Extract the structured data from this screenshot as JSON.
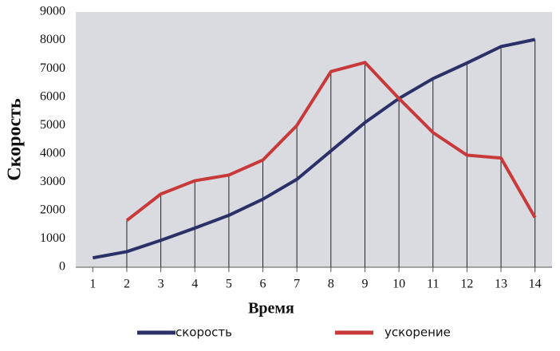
{
  "chart_data": {
    "type": "line",
    "x_label": "Время",
    "y_label": "Скорость",
    "categories": [
      "1",
      "2",
      "3",
      "4",
      "5",
      "6",
      "7",
      "8",
      "9",
      "10",
      "11",
      "12",
      "13",
      "14"
    ],
    "series": [
      {
        "name": "скорость",
        "color": "#2b3168",
        "values": [
          330,
          550,
          950,
          1380,
          1830,
          2400,
          3100,
          4100,
          5100,
          5950,
          6650,
          7200,
          7780,
          8030
        ]
      },
      {
        "name": "ускорение",
        "color": "#c83a3a",
        "values": [
          null,
          1650,
          2580,
          3050,
          3250,
          3780,
          5000,
          6900,
          7220,
          5950,
          4750,
          3950,
          3850,
          1750
        ]
      }
    ],
    "ylim": [
      0,
      9000
    ],
    "yticks": [
      0,
      1000,
      2000,
      3000,
      4000,
      5000,
      6000,
      7000,
      8000,
      9000
    ],
    "drop_lines": true
  }
}
